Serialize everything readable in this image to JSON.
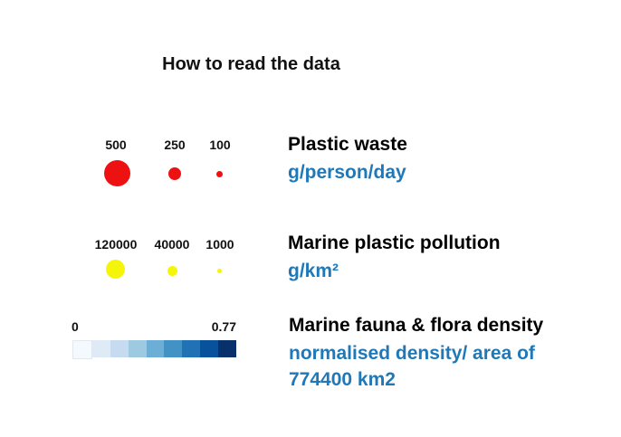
{
  "title": "How to read the data",
  "plastic_waste": {
    "heading": "Plastic waste",
    "unit": "g/person/day",
    "sizes": [
      {
        "label": "500",
        "value": 500
      },
      {
        "label": "250",
        "value": 250
      },
      {
        "label": "100",
        "value": 100
      }
    ],
    "color": "#ee1111"
  },
  "marine_pollution": {
    "heading": "Marine plastic pollution",
    "unit": "g/km²",
    "sizes": [
      {
        "label": "120000",
        "value": 120000
      },
      {
        "label": "40000",
        "value": 40000
      },
      {
        "label": "1000",
        "value": 1000
      }
    ],
    "color": "#f5f50a"
  },
  "fauna_flora": {
    "heading": "Marine fauna & flora density",
    "unit_line1": "normalised density/ area of",
    "unit_line2": "774400 km2",
    "scale_min": "0",
    "scale_max": "0.77",
    "colors": [
      "#f4f9fe",
      "#deebf7",
      "#c6dbef",
      "#9ecae1",
      "#6baed6",
      "#4292c6",
      "#2171b5",
      "#08519c",
      "#08306b"
    ]
  }
}
